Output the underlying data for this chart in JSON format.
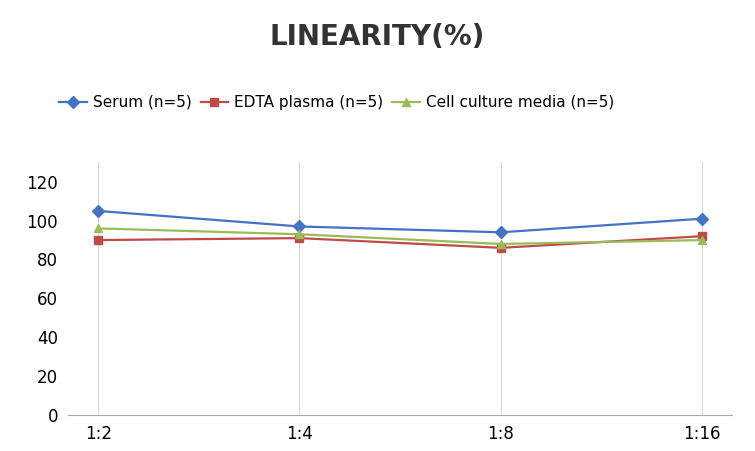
{
  "title": "LINEARITY(%)",
  "x_labels": [
    "1:2",
    "1:4",
    "1:8",
    "1:16"
  ],
  "x_positions": [
    0,
    1,
    2,
    3
  ],
  "series": [
    {
      "label": "Serum (n=5)",
      "values": [
        105,
        97,
        94,
        101
      ],
      "color": "#4472C4",
      "marker": "D",
      "markersize": 6,
      "linewidth": 1.6
    },
    {
      "label": "EDTA plasma (n=5)",
      "values": [
        90,
        91,
        86,
        92
      ],
      "color": "#BE4B48",
      "marker": "s",
      "markersize": 6,
      "linewidth": 1.6
    },
    {
      "label": "Cell culture media (n=5)",
      "values": [
        96,
        93,
        88,
        90
      ],
      "color": "#9BBB59",
      "marker": "^",
      "markersize": 6,
      "linewidth": 1.6
    }
  ],
  "ylim": [
    0,
    130
  ],
  "yticks": [
    0,
    20,
    40,
    60,
    80,
    100,
    120
  ],
  "grid_color": "#D8D8D8",
  "background_color": "#FFFFFF",
  "title_fontsize": 20,
  "tick_fontsize": 12,
  "legend_fontsize": 11
}
